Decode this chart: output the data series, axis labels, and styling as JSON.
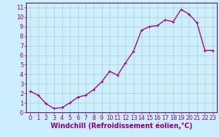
{
  "x": [
    0,
    1,
    2,
    3,
    4,
    5,
    6,
    7,
    8,
    9,
    10,
    11,
    12,
    13,
    14,
    15,
    16,
    17,
    18,
    19,
    20,
    21,
    22,
    23
  ],
  "y": [
    2.2,
    1.8,
    0.9,
    0.4,
    0.5,
    1.0,
    1.6,
    1.8,
    2.4,
    3.2,
    4.3,
    3.9,
    5.2,
    6.4,
    8.6,
    9.0,
    9.1,
    9.7,
    9.5,
    10.8,
    10.3,
    9.4,
    6.5,
    6.5
  ],
  "line_color": "#990099",
  "marker": "+",
  "marker_size": 3,
  "xlim": [
    -0.5,
    23.5
  ],
  "ylim": [
    0,
    11.5
  ],
  "yticks": [
    0,
    1,
    2,
    3,
    4,
    5,
    6,
    7,
    8,
    9,
    10,
    11
  ],
  "xticks": [
    0,
    1,
    2,
    3,
    4,
    5,
    6,
    7,
    8,
    9,
    10,
    11,
    12,
    13,
    14,
    15,
    16,
    17,
    18,
    19,
    20,
    21,
    22,
    23
  ],
  "xlabel": "Windchill (Refroidissement éolien,°C)",
  "xlabel_fontsize": 7,
  "tick_fontsize": 6,
  "bg_color": "#cceeff",
  "grid_color": "#aaccbb",
  "tick_color": "#880088",
  "spine_color": "#660066",
  "line_width": 1.0,
  "fig_width": 3.2,
  "fig_height": 2.0,
  "dpi": 100
}
